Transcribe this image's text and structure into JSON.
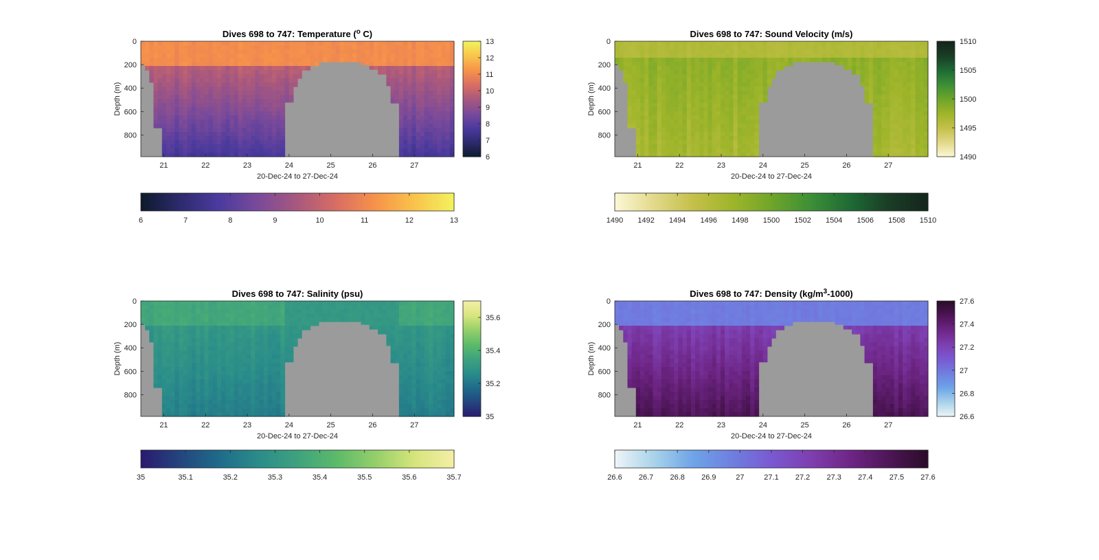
{
  "chart_data": [
    {
      "type": "heatmap",
      "title": "Dives 698 to 747: Temperature (",
      "title_sup": "o",
      "title_end": " C)",
      "xlabel": "20-Dec-24 to 27-Dec-24",
      "ylabel": "Depth (m)",
      "xlim": [
        20.45,
        27.95
      ],
      "ylim": [
        985,
        0
      ],
      "xticks": [
        "21",
        "22",
        "23",
        "24",
        "25",
        "26",
        "27"
      ],
      "yticks": [
        "0",
        "200",
        "400",
        "600",
        "800"
      ],
      "colormap": [
        "#0d1b2a",
        "#2d2a6e",
        "#4b3a9e",
        "#7a4a9a",
        "#a8587e",
        "#d96e63",
        "#f7934a",
        "#f9c44b",
        "#f2f25e"
      ],
      "clim": [
        6,
        13
      ],
      "cbar_right_ticks": [
        "6",
        "7",
        "8",
        "9",
        "10",
        "11",
        "12",
        "13"
      ],
      "cbar_bottom_ticks": [
        "6",
        "7",
        "8",
        "9",
        "10",
        "11",
        "12",
        "13"
      ],
      "surface_value": 11.1,
      "deep_value": 7.6,
      "mix_depth": 210,
      "ranges": {
        "surface": [
          10.8,
          11.4
        ],
        "mid": [
          9.3,
          10.2
        ],
        "deep": [
          7.2,
          8.0
        ]
      },
      "seabed_depth_by_dive": [
        200,
        260,
        350,
        740,
        985,
        985,
        985,
        985,
        985,
        985,
        985,
        985,
        985,
        985,
        985,
        985,
        985,
        985,
        985,
        985,
        985,
        985,
        985,
        985,
        985,
        985,
        985,
        985,
        985,
        985,
        985,
        985,
        985,
        985,
        985,
        985,
        985,
        985,
        985,
        985,
        985,
        985,
        985,
        985,
        985,
        985,
        985,
        985,
        985,
        985
      ]
    },
    {
      "type": "heatmap",
      "title": "Dives 698 to 747: Sound Velocity (m/s)",
      "xlabel": "20-Dec-24 to 27-Dec-24",
      "ylabel": "Depth (m)",
      "xlim": [
        20.45,
        27.95
      ],
      "ylim": [
        985,
        0
      ],
      "xticks": [
        "21",
        "22",
        "23",
        "24",
        "25",
        "26",
        "27"
      ],
      "yticks": [
        "0",
        "200",
        "400",
        "600",
        "800"
      ],
      "colormap": [
        "#fdf8d6",
        "#e2d98a",
        "#c4c04a",
        "#9fb52a",
        "#6fa52a",
        "#3d8f36",
        "#1e6b35",
        "#1a3d26",
        "#14261b"
      ],
      "clim": [
        1490,
        1510
      ],
      "cbar_right_ticks": [
        "1490",
        "1495",
        "1500",
        "1505",
        "1510"
      ],
      "cbar_bottom_ticks": [
        "1490",
        "1492",
        "1494",
        "1496",
        "1498",
        "1500",
        "1502",
        "1504",
        "1506",
        "1508",
        "1510"
      ],
      "surface_value": 1496.2,
      "deep_value": 1497.6,
      "mix_depth": 150,
      "ranges": {
        "surface": [
          1495.5,
          1497.0
        ],
        "mid": [
          1497.0,
          1499.5
        ],
        "deep": [
          1495.0,
          1498.5
        ]
      }
    },
    {
      "type": "heatmap",
      "title": "Dives 698 to 747: Salinity (psu)",
      "xlabel": "20-Dec-24 to 27-Dec-24",
      "ylabel": "Depth (m)",
      "xlim": [
        20.45,
        27.95
      ],
      "ylim": [
        985,
        0
      ],
      "xticks": [
        "21",
        "22",
        "23",
        "24",
        "25",
        "26",
        "27"
      ],
      "yticks": [
        "0",
        "200",
        "400",
        "600",
        "800"
      ],
      "colormap": [
        "#2a1a6e",
        "#24457f",
        "#1f6b8a",
        "#2a8c8a",
        "#3ea27e",
        "#5cba6a",
        "#95cf6a",
        "#d6e57c",
        "#f4efa6"
      ],
      "clim": [
        35,
        35.7
      ],
      "cbar_right_ticks": [
        "35",
        "35.2",
        "35.4",
        "35.6"
      ],
      "cbar_bottom_ticks": [
        "35",
        "35.1",
        "35.2",
        "35.3",
        "35.4",
        "35.5",
        "35.6",
        "35.7"
      ],
      "surface_value": 35.36,
      "deep_value": 35.22,
      "mix_depth": 200,
      "ranges": {
        "surface": [
          35.33,
          35.4
        ],
        "mid": [
          35.26,
          35.35
        ],
        "deep": [
          35.19,
          35.26
        ]
      }
    },
    {
      "type": "heatmap",
      "title": "Dives 698 to 747: Density (kg/m",
      "title_sup": "3",
      "title_end": "-1000)",
      "xlabel": "20-Dec-24 to 27-Dec-24",
      "ylabel": "Depth (m)",
      "xlim": [
        20.45,
        27.95
      ],
      "ylim": [
        985,
        0
      ],
      "xticks": [
        "21",
        "22",
        "23",
        "24",
        "25",
        "26",
        "27"
      ],
      "yticks": [
        "0",
        "200",
        "400",
        "600",
        "800"
      ],
      "colormap": [
        "#eef5f7",
        "#a9d3ea",
        "#6ea4e8",
        "#6f7fe0",
        "#7a59d2",
        "#7e3fb0",
        "#6e2686",
        "#4e1557",
        "#2a0c29"
      ],
      "clim": [
        26.6,
        27.6
      ],
      "cbar_right_ticks": [
        "26.6",
        "26.8",
        "27",
        "27.2",
        "27.4",
        "27.6"
      ],
      "cbar_bottom_ticks": [
        "26.6",
        "26.7",
        "26.8",
        "26.9",
        "27",
        "27.1",
        "27.2",
        "27.3",
        "27.4",
        "27.5",
        "27.6"
      ],
      "surface_value": 26.98,
      "deep_value": 27.48,
      "mix_depth": 200,
      "ranges": {
        "surface": [
          26.95,
          27.02
        ],
        "mid": [
          27.15,
          27.3
        ],
        "deep": [
          27.4,
          27.55
        ]
      }
    }
  ]
}
